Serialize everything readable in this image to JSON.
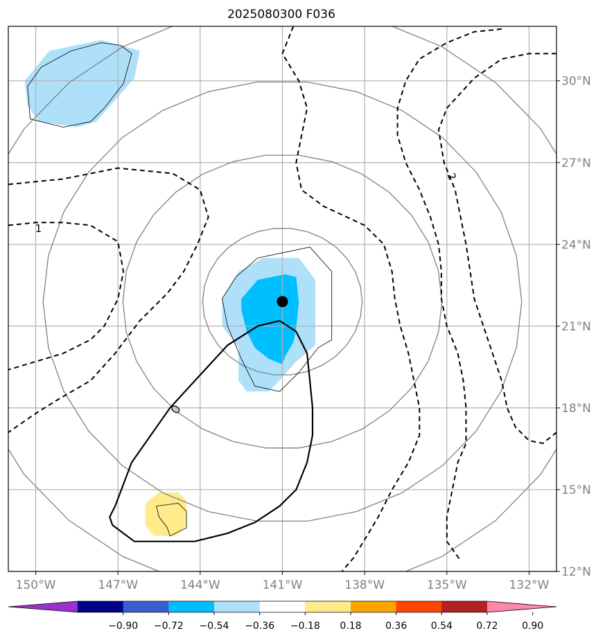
{
  "chart_data": {
    "type": "contour-map",
    "title": "2025080300 F036",
    "xlim": [
      -151,
      -131
    ],
    "ylim": [
      12,
      32
    ],
    "x_ticks": [
      -150,
      -147,
      -144,
      -141,
      -138,
      -135,
      -132
    ],
    "x_tick_labels": [
      "150°W",
      "147°W",
      "144°W",
      "141°W",
      "138°W",
      "135°W",
      "132°W"
    ],
    "y_ticks": [
      30,
      27,
      24,
      21,
      18,
      15,
      12
    ],
    "y_tick_labels": [
      "30°N",
      "27°N",
      "24°N",
      "21°N",
      "18°N",
      "15°N",
      "12°N"
    ],
    "grid": true,
    "center_point": {
      "lon": -141.0,
      "lat": 21.9
    },
    "range_rings_deg": [
      2.7,
      5.4,
      8.1,
      10.8
    ],
    "fill_levels": [
      {
        "lo": -0.36,
        "hi": -0.18,
        "color": "#aee0fa"
      },
      {
        "lo": -0.54,
        "hi": -0.36,
        "color": "#00bfff"
      },
      {
        "lo": 0.18,
        "hi": 0.36,
        "color": "#ffea8c"
      }
    ],
    "fill_regions": [
      {
        "level": -0.18,
        "color": "#aee0fa",
        "points": [
          [
            -150.4,
            30.0
          ],
          [
            -149.5,
            31.1
          ],
          [
            -147.6,
            31.5
          ],
          [
            -146.2,
            31.1
          ],
          [
            -146.4,
            30.1
          ],
          [
            -147.8,
            28.5
          ],
          [
            -148.5,
            28.3
          ],
          [
            -149.9,
            28.5
          ],
          [
            -150.3,
            29.1
          ]
        ]
      },
      {
        "level": -0.18,
        "color": "#aee0fa",
        "points": [
          [
            -143.2,
            22.0
          ],
          [
            -142.6,
            23.0
          ],
          [
            -141.7,
            23.5
          ],
          [
            -140.4,
            23.5
          ],
          [
            -139.8,
            22.7
          ],
          [
            -139.8,
            20.3
          ],
          [
            -140.5,
            19.7
          ],
          [
            -141.2,
            18.9
          ],
          [
            -141.5,
            18.6
          ],
          [
            -142.3,
            18.6
          ],
          [
            -142.6,
            19.0
          ],
          [
            -142.6,
            20.2
          ],
          [
            -143.2,
            21.0
          ]
        ]
      },
      {
        "level": -0.36,
        "color": "#00bfff",
        "points": [
          [
            -142.5,
            22.0
          ],
          [
            -141.9,
            22.7
          ],
          [
            -140.9,
            22.9
          ],
          [
            -140.5,
            22.8
          ],
          [
            -140.4,
            21.9
          ],
          [
            -140.5,
            20.9
          ],
          [
            -140.6,
            20.4
          ],
          [
            -140.9,
            19.9
          ],
          [
            -141.0,
            19.6
          ],
          [
            -141.5,
            19.8
          ],
          [
            -142.0,
            20.2
          ],
          [
            -142.3,
            20.8
          ],
          [
            -142.5,
            21.6
          ]
        ]
      },
      {
        "level": 0.18,
        "color": "#ffea8c",
        "points": [
          [
            -146.0,
            14.5
          ],
          [
            -145.5,
            14.9
          ],
          [
            -144.8,
            14.9
          ],
          [
            -144.5,
            14.6
          ],
          [
            -144.5,
            13.7
          ],
          [
            -144.9,
            13.3
          ],
          [
            -145.7,
            13.3
          ],
          [
            -146.0,
            13.7
          ]
        ]
      }
    ],
    "thin_outlines": [
      [
        [
          -150.3,
          29.8
        ],
        [
          -149.8,
          30.5
        ],
        [
          -148.7,
          31.1
        ],
        [
          -147.6,
          31.4
        ],
        [
          -146.9,
          31.3
        ],
        [
          -146.5,
          31.0
        ],
        [
          -146.8,
          29.9
        ],
        [
          -147.5,
          29.0
        ],
        [
          -148.0,
          28.5
        ],
        [
          -149.0,
          28.3
        ],
        [
          -150.2,
          28.6
        ]
      ],
      [
        [
          -143.2,
          22.0
        ],
        [
          -142.7,
          22.8
        ],
        [
          -141.9,
          23.5
        ],
        [
          -140.0,
          23.9
        ],
        [
          -139.2,
          23.0
        ],
        [
          -139.2,
          20.5
        ],
        [
          -139.7,
          20.2
        ],
        [
          -140.4,
          19.3
        ],
        [
          -141.1,
          18.6
        ],
        [
          -142.0,
          18.8
        ],
        [
          -142.5,
          19.8
        ],
        [
          -143.0,
          21.0
        ]
      ],
      [
        [
          -145.6,
          14.4
        ],
        [
          -144.8,
          14.5
        ],
        [
          -144.5,
          14.2
        ],
        [
          -144.5,
          13.6
        ],
        [
          -145.1,
          13.3
        ],
        [
          -145.2,
          13.6
        ],
        [
          -145.5,
          14.0
        ]
      ]
    ],
    "thick_contour": [
      [
        -141.1,
        21.2
      ],
      [
        -141.9,
        21.0
      ],
      [
        -143.0,
        20.3
      ],
      [
        -144.1,
        19.1
      ],
      [
        -145.1,
        18.0
      ],
      [
        -146.5,
        16.0
      ],
      [
        -147.1,
        14.4
      ],
      [
        -147.3,
        14.0
      ],
      [
        -147.2,
        13.7
      ],
      [
        -146.4,
        13.1
      ],
      [
        -145.6,
        13.1
      ],
      [
        -144.2,
        13.1
      ],
      [
        -143.0,
        13.4
      ],
      [
        -142.0,
        13.8
      ],
      [
        -141.1,
        14.4
      ],
      [
        -140.5,
        15.0
      ],
      [
        -140.1,
        16.0
      ],
      [
        -139.9,
        17.0
      ],
      [
        -139.9,
        18.0
      ],
      [
        -140.0,
        19.0
      ],
      [
        -140.1,
        20.0
      ],
      [
        -140.5,
        20.8
      ],
      [
        -141.1,
        21.2
      ]
    ],
    "dashed_contours": [
      {
        "label": "1",
        "points": [
          [
            -151,
            26.2
          ],
          [
            -149.0,
            26.4
          ],
          [
            -147.0,
            26.8
          ],
          [
            -145.0,
            26.6
          ],
          [
            -144.0,
            26.0
          ],
          [
            -143.7,
            25.0
          ],
          [
            -144.1,
            24.0
          ],
          [
            -144.6,
            23.0
          ],
          [
            -145.2,
            22.2
          ],
          [
            -146.2,
            21.2
          ],
          [
            -147.1,
            20.0
          ],
          [
            -148.0,
            19.0
          ],
          [
            -149.2,
            18.3
          ],
          [
            -150.0,
            17.8
          ],
          [
            -151,
            17.1
          ]
        ]
      },
      {
        "label": "1",
        "points": [
          [
            -151,
            24.7
          ],
          [
            -150.0,
            24.8
          ],
          [
            -149.0,
            24.8
          ],
          [
            -148.0,
            24.7
          ],
          [
            -147.0,
            24.1
          ],
          [
            -146.8,
            23.0
          ],
          [
            -147.0,
            22.0
          ],
          [
            -147.5,
            21.0
          ],
          [
            -148.0,
            20.5
          ],
          [
            -149.0,
            20.0
          ],
          [
            -151,
            19.4
          ]
        ]
      },
      {
        "label": "",
        "points": [
          [
            -140.6,
            32.0
          ],
          [
            -141.0,
            31.0
          ],
          [
            -140.4,
            30.0
          ],
          [
            -140.1,
            29.0
          ],
          [
            -140.3,
            28.0
          ],
          [
            -140.5,
            27.0
          ],
          [
            -140.3,
            26.0
          ],
          [
            -139.5,
            25.4
          ],
          [
            -138.0,
            24.7
          ],
          [
            -137.3,
            24.0
          ],
          [
            -137.0,
            23.0
          ],
          [
            -136.9,
            22.0
          ],
          [
            -136.7,
            21.0
          ],
          [
            -136.4,
            20.0
          ],
          [
            -136.2,
            19.0
          ],
          [
            -136.0,
            18.0
          ],
          [
            -136.0,
            17.0
          ],
          [
            -136.4,
            16.0
          ],
          [
            -137.0,
            15.0
          ],
          [
            -137.5,
            14.0
          ],
          [
            -138.4,
            12.5
          ],
          [
            -139.0,
            11.8
          ]
        ]
      },
      {
        "label": "2",
        "points": [
          [
            -133.0,
            31.9
          ],
          [
            -134.0,
            31.8
          ],
          [
            -135.0,
            31.4
          ],
          [
            -136.0,
            30.8
          ],
          [
            -136.5,
            30.0
          ],
          [
            -136.8,
            29.0
          ],
          [
            -136.8,
            28.0
          ],
          [
            -136.5,
            27.0
          ],
          [
            -136.0,
            26.0
          ],
          [
            -135.6,
            25.0
          ],
          [
            -135.3,
            24.0
          ],
          [
            -135.2,
            23.0
          ],
          [
            -135.2,
            22.0
          ],
          [
            -135.0,
            21.0
          ],
          [
            -134.6,
            20.0
          ],
          [
            -134.4,
            19.0
          ],
          [
            -134.3,
            18.0
          ],
          [
            -134.3,
            16.7
          ],
          [
            -134.6,
            16.0
          ],
          [
            -134.8,
            15.0
          ],
          [
            -135.0,
            14.0
          ],
          [
            -135.0,
            13.1
          ],
          [
            -134.5,
            12.4
          ]
        ]
      },
      {
        "label": "",
        "points": [
          [
            -131,
            31.0
          ],
          [
            -132.0,
            31.0
          ],
          [
            -133.0,
            30.8
          ],
          [
            -134.0,
            30.1
          ],
          [
            -135.0,
            29.0
          ],
          [
            -135.3,
            28.2
          ],
          [
            -135.1,
            27.0
          ],
          [
            -134.7,
            26.0
          ],
          [
            -134.5,
            25.0
          ],
          [
            -134.3,
            24.0
          ],
          [
            -134.0,
            22.0
          ],
          [
            -133.5,
            20.5
          ],
          [
            -133.0,
            19.0
          ],
          [
            -132.8,
            18.0
          ],
          [
            -132.5,
            17.3
          ],
          [
            -132.0,
            16.8
          ],
          [
            -131.5,
            16.7
          ],
          [
            -131.0,
            17.1
          ],
          [
            -130.8,
            17.5
          ]
        ]
      }
    ],
    "colorbar": {
      "colors": [
        "#9932cc",
        "#00008b",
        "#3a5fcd",
        "#00bfff",
        "#aee0fa",
        "#ffffff",
        "#ffea8c",
        "#ffa500",
        "#ff4500",
        "#b22222",
        "#ff87a8"
      ],
      "tick_labels": [
        "−0.90",
        "−0.72",
        "−0.54",
        "−0.36",
        "−0.18",
        "0.18",
        "0.36",
        "0.54",
        "0.72",
        "0.90"
      ]
    }
  }
}
